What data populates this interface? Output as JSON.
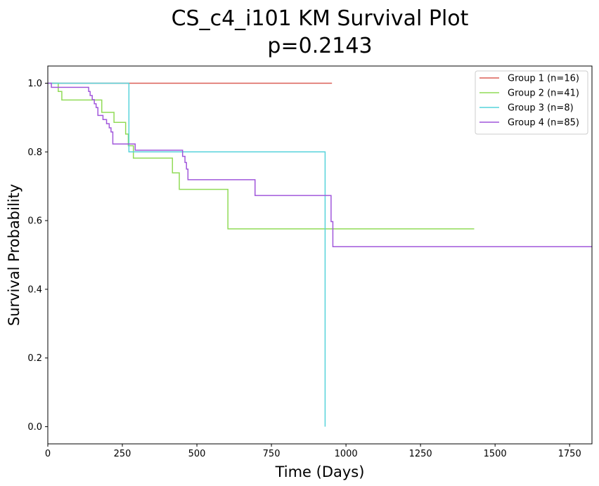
{
  "chart_data": {
    "type": "line",
    "title": "CS_c4_i101 KM Survival Plot",
    "subtitle": "p=0.2143",
    "xlabel": "Time (Days)",
    "ylabel": "Survival Probability",
    "xlim": [
      0,
      1825
    ],
    "ylim": [
      -0.05,
      1.05
    ],
    "xticks": [
      0,
      250,
      500,
      750,
      1000,
      1250,
      1500,
      1750
    ],
    "yticks": [
      0.0,
      0.2,
      0.4,
      0.6,
      0.8,
      1.0
    ],
    "xtick_labels": [
      "0",
      "250",
      "500",
      "750",
      "1000",
      "1250",
      "1500",
      "1750"
    ],
    "ytick_labels": [
      "0.0",
      "0.2",
      "0.4",
      "0.6",
      "0.8",
      "1.0"
    ],
    "grid": false,
    "legend_position": "top-right",
    "series": [
      {
        "name": "Group 1 (n=16)",
        "color": "#db5f57",
        "steps": [
          [
            0,
            1.0
          ],
          [
            953,
            1.0
          ]
        ]
      },
      {
        "name": "Group 2 (n=41)",
        "color": "#91db57",
        "steps": [
          [
            0,
            1.0
          ],
          [
            35,
            0.976
          ],
          [
            47,
            0.951
          ],
          [
            181,
            0.915
          ],
          [
            222,
            0.886
          ],
          [
            261,
            0.852
          ],
          [
            270,
            0.818
          ],
          [
            287,
            0.782
          ],
          [
            418,
            0.739
          ],
          [
            441,
            0.691
          ],
          [
            604,
            0.576
          ],
          [
            1430,
            0.576
          ]
        ]
      },
      {
        "name": "Group 3 (n=8)",
        "color": "#57d3db",
        "steps": [
          [
            0,
            1.0
          ],
          [
            272,
            0.8
          ],
          [
            930,
            0.0
          ]
        ]
      },
      {
        "name": "Group 4 (n=85)",
        "color": "#a157db",
        "steps": [
          [
            0,
            1.0
          ],
          [
            12,
            0.988
          ],
          [
            137,
            0.976
          ],
          [
            142,
            0.964
          ],
          [
            149,
            0.952
          ],
          [
            156,
            0.94
          ],
          [
            162,
            0.929
          ],
          [
            168,
            0.906
          ],
          [
            185,
            0.894
          ],
          [
            197,
            0.882
          ],
          [
            206,
            0.87
          ],
          [
            212,
            0.858
          ],
          [
            218,
            0.823
          ],
          [
            293,
            0.805
          ],
          [
            452,
            0.787
          ],
          [
            460,
            0.769
          ],
          [
            465,
            0.75
          ],
          [
            470,
            0.719
          ],
          [
            695,
            0.673
          ],
          [
            950,
            0.597
          ],
          [
            956,
            0.524
          ],
          [
            1825,
            0.524
          ]
        ]
      }
    ]
  }
}
